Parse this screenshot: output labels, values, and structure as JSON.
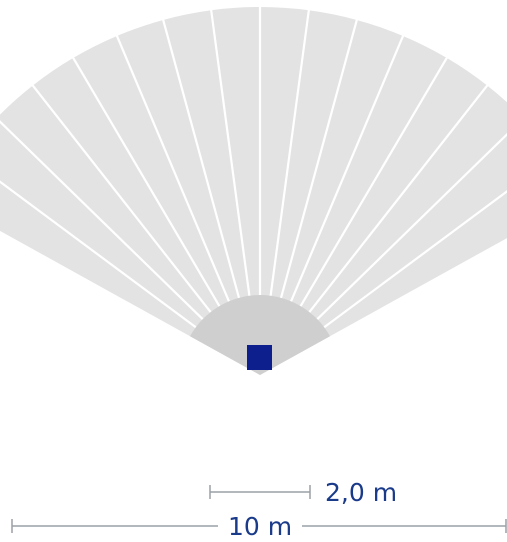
{
  "diagram": {
    "kind": "detection-field",
    "segment_count": 16,
    "field_angle_deg": 122,
    "colors": {
      "far_field": "#e3e3e3",
      "near_field": "#cfcfcf",
      "separator": "#ffffff",
      "sensor": "#0d1f8c",
      "scale_line": "#9aa0a6",
      "label": "#1a3a8a"
    }
  },
  "scale_bars": {
    "small": {
      "label": "2,0 m",
      "length_m": 2.0
    },
    "large": {
      "label": "10 m",
      "length_m": 10
    }
  }
}
